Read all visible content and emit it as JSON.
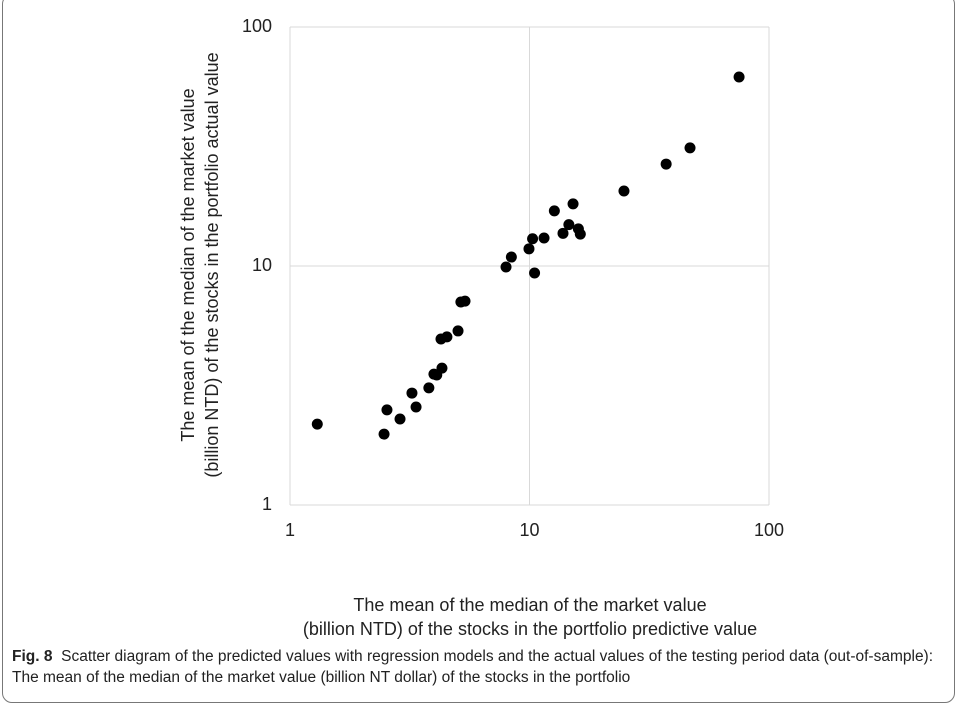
{
  "chart_data": {
    "type": "scatter",
    "xlabel": "The mean of the median of the market value (billion NTD) of the stocks in the portfolio predictive value",
    "ylabel": "The mean of the median of the market value (billion NTD) of the stocks in the portfolio actual value",
    "caption_label": "Fig. 8",
    "caption": "Scatter diagram of the predicted values with regression models and the actual values of the testing period data (out-of-sample): The mean of the median of the market value (billion NT dollar) of the stocks in the portfolio",
    "xscale": "log",
    "yscale": "log",
    "xlim": [
      1,
      100
    ],
    "ylim": [
      1,
      100
    ],
    "xticks": [
      1,
      10,
      100
    ],
    "yticks": [
      1,
      10,
      100
    ],
    "grid": true,
    "color": "#000000",
    "x": [
      1.3,
      2.47,
      2.54,
      2.88,
      3.23,
      3.36,
      3.8,
      3.99,
      4.1,
      4.31,
      4.27,
      4.52,
      5.03,
      5.17,
      5.38,
      7.98,
      8.4,
      9.95,
      10.3,
      10.5,
      11.5,
      12.7,
      13.8,
      14.6,
      15.2,
      16.0,
      16.3,
      24.8,
      37.2,
      46.8,
      75
    ],
    "values": [
      2.18,
      1.98,
      2.5,
      2.29,
      2.94,
      2.57,
      3.09,
      3.53,
      3.5,
      3.74,
      4.95,
      5.05,
      5.35,
      7.07,
      7.13,
      9.9,
      10.9,
      11.8,
      13.0,
      9.35,
      13.1,
      17.0,
      13.7,
      14.9,
      18.2,
      14.3,
      13.6,
      20.6,
      26.7,
      31.2,
      61.8
    ]
  }
}
